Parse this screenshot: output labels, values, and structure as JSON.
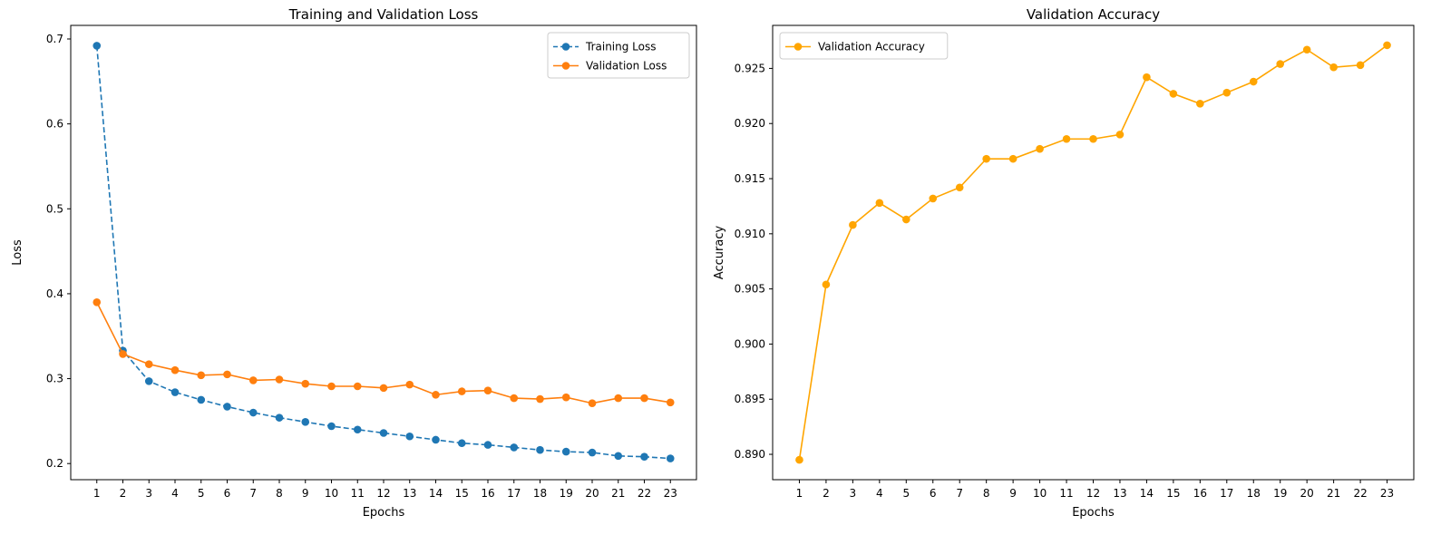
{
  "chart_data": [
    {
      "type": "line",
      "title": "Training and Validation Loss",
      "xlabel": "Epochs",
      "ylabel": "Loss",
      "x": [
        1,
        2,
        3,
        4,
        5,
        6,
        7,
        8,
        9,
        10,
        11,
        12,
        13,
        14,
        15,
        16,
        17,
        18,
        19,
        20,
        21,
        22,
        23
      ],
      "xticks": [
        1,
        2,
        3,
        4,
        5,
        6,
        7,
        8,
        9,
        10,
        11,
        12,
        13,
        14,
        15,
        16,
        17,
        18,
        19,
        20,
        21,
        22,
        23
      ],
      "yticks": [
        0.2,
        0.3,
        0.4,
        0.5,
        0.6,
        0.7
      ],
      "ytick_labels": [
        "0.2",
        "0.3",
        "0.4",
        "0.5",
        "0.6",
        "0.7"
      ],
      "xlim": [
        0.0,
        24.0
      ],
      "ylim": [
        0.181,
        0.716
      ],
      "grid": false,
      "legend": "top-right",
      "series": [
        {
          "name": "Training Loss",
          "color": "#1f77b4",
          "linestyle": "dashed",
          "marker": "circle",
          "values": [
            0.692,
            0.333,
            0.297,
            0.284,
            0.275,
            0.267,
            0.26,
            0.254,
            0.249,
            0.244,
            0.24,
            0.236,
            0.232,
            0.228,
            0.224,
            0.222,
            0.219,
            0.216,
            0.214,
            0.213,
            0.209,
            0.208,
            0.206
          ]
        },
        {
          "name": "Validation Loss",
          "color": "#ff7f0e",
          "linestyle": "solid",
          "marker": "circle",
          "values": [
            0.39,
            0.329,
            0.317,
            0.31,
            0.304,
            0.305,
            0.298,
            0.299,
            0.294,
            0.291,
            0.291,
            0.289,
            0.293,
            0.281,
            0.285,
            0.286,
            0.277,
            0.276,
            0.278,
            0.271,
            0.277,
            0.277,
            0.272
          ]
        }
      ]
    },
    {
      "type": "line",
      "title": "Validation Accuracy",
      "xlabel": "Epochs",
      "ylabel": "Accuracy",
      "x": [
        1,
        2,
        3,
        4,
        5,
        6,
        7,
        8,
        9,
        10,
        11,
        12,
        13,
        14,
        15,
        16,
        17,
        18,
        19,
        20,
        21,
        22,
        23
      ],
      "xticks": [
        1,
        2,
        3,
        4,
        5,
        6,
        7,
        8,
        9,
        10,
        11,
        12,
        13,
        14,
        15,
        16,
        17,
        18,
        19,
        20,
        21,
        22,
        23
      ],
      "yticks": [
        0.89,
        0.895,
        0.9,
        0.905,
        0.91,
        0.915,
        0.92,
        0.925
      ],
      "ytick_labels": [
        "0.890",
        "0.895",
        "0.900",
        "0.905",
        "0.910",
        "0.915",
        "0.920",
        "0.925"
      ],
      "xlim": [
        0.0,
        24.0
      ],
      "ylim": [
        0.8877,
        0.9289
      ],
      "grid": false,
      "legend": "top-left",
      "series": [
        {
          "name": "Validation Accuracy",
          "color": "#ffa500",
          "linestyle": "solid",
          "marker": "circle",
          "values": [
            0.8895,
            0.9054,
            0.9108,
            0.9128,
            0.9113,
            0.9132,
            0.9142,
            0.9168,
            0.9168,
            0.9177,
            0.9186,
            0.9186,
            0.919,
            0.9242,
            0.9227,
            0.9218,
            0.9228,
            0.9238,
            0.9254,
            0.9267,
            0.9251,
            0.9253,
            0.9271
          ]
        }
      ]
    }
  ]
}
